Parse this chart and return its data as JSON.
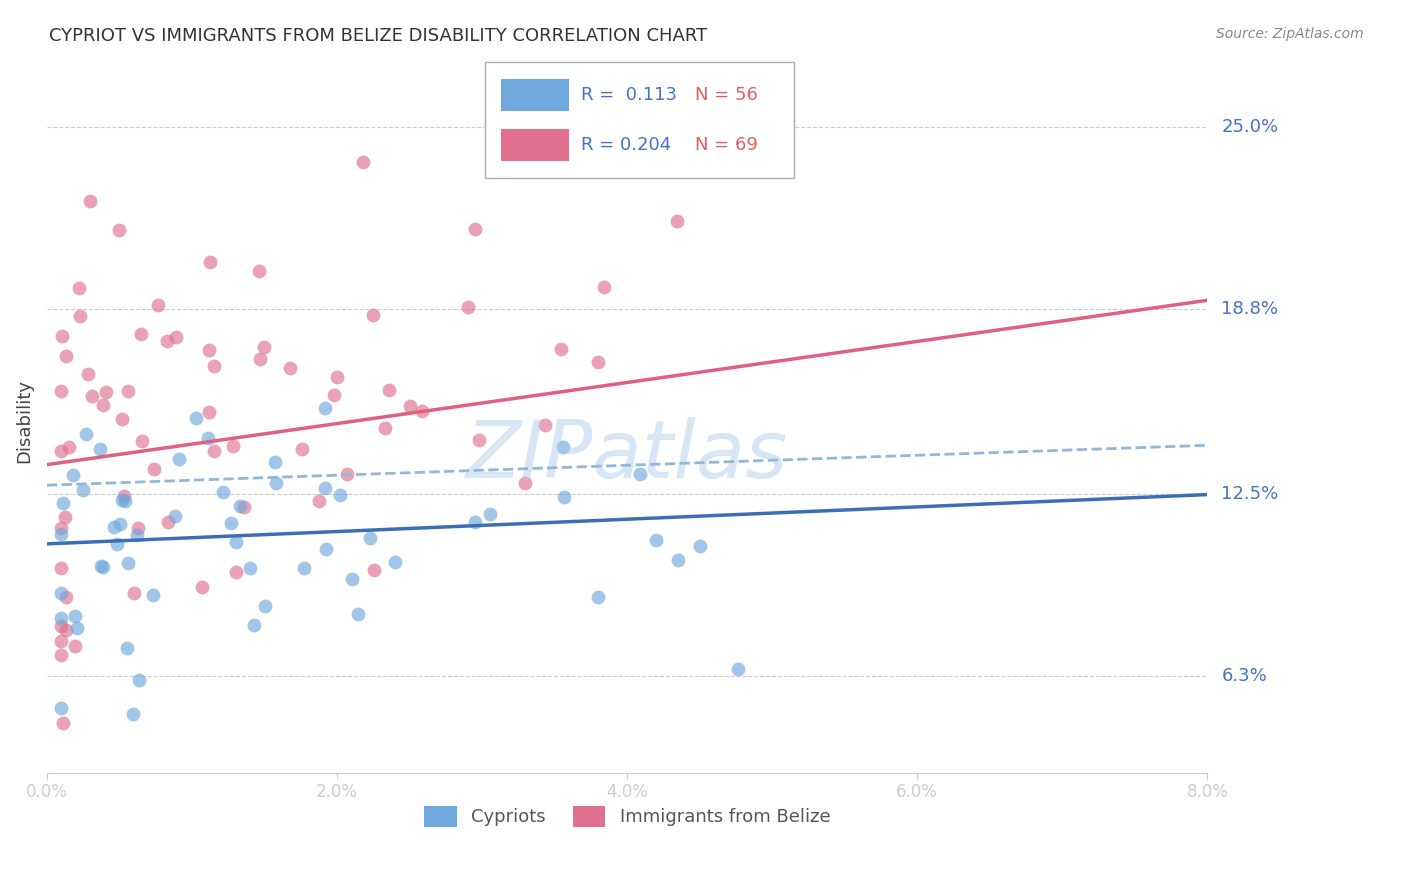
{
  "title": "CYPRIOT VS IMMIGRANTS FROM BELIZE DISABILITY CORRELATION CHART",
  "source": "Source: ZipAtlas.com",
  "ylabel": "Disability",
  "xlim": [
    0.0,
    0.08
  ],
  "ylim": [
    0.03,
    0.27
  ],
  "ytick_vals": [
    0.063,
    0.125,
    0.188,
    0.25
  ],
  "ytick_labels": [
    "6.3%",
    "12.5%",
    "18.8%",
    "25.0%"
  ],
  "xticks": [
    0.0,
    0.02,
    0.04,
    0.06,
    0.08
  ],
  "xtick_labels": [
    "0.0%",
    "2.0%",
    "4.0%",
    "6.0%",
    "8.0%"
  ],
  "blue_R": 0.113,
  "blue_N": 56,
  "pink_R": 0.204,
  "pink_N": 69,
  "blue_color": "#6fa8dc",
  "pink_color": "#e07090",
  "blue_line_color": "#3c6eb4",
  "pink_line_color": "#e06080",
  "dashed_line_color": "#90b8d8",
  "watermark": "ZIPatlas",
  "blue_intercept": 0.108,
  "blue_slope": 0.21,
  "pink_intercept": 0.135,
  "pink_slope": 0.7,
  "dashed_intercept": 0.128,
  "dashed_slope": 0.17
}
